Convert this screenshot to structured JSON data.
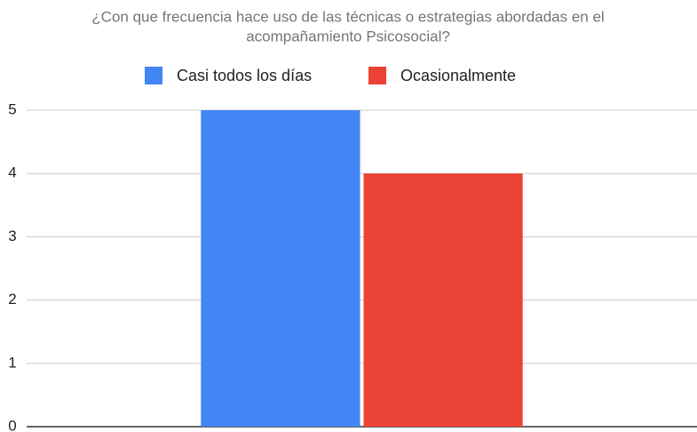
{
  "chart_data": {
    "type": "bar",
    "title": [
      "¿Con que frecuencia hace uso de las técnicas o estrategias abordadas en el",
      "acompañamiento Psicosocial?"
    ],
    "categories": [
      null
    ],
    "series": [
      {
        "name": "Casi todos los días",
        "color": "#4285f4",
        "values": [
          5
        ]
      },
      {
        "name": "Ocasionalmente",
        "color": "#ea4335",
        "values": [
          4
        ]
      }
    ],
    "ylim": [
      0,
      5
    ],
    "yticks": [
      0,
      1,
      2,
      3,
      4,
      5
    ],
    "grid": true,
    "legend": "top"
  }
}
